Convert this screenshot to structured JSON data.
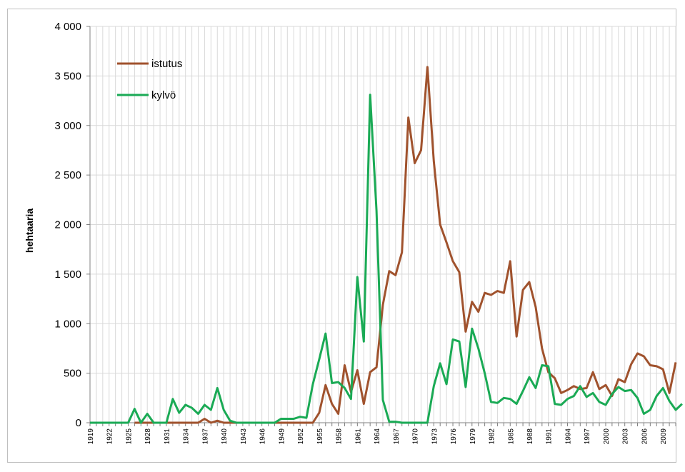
{
  "chart_data": {
    "type": "line",
    "title": "",
    "xlabel": "",
    "ylabel": "hehtaaria",
    "ylim": [
      0,
      4000
    ],
    "yticks": [
      0,
      500,
      1000,
      1500,
      2000,
      2500,
      3000,
      3500,
      4000
    ],
    "ytick_labels": [
      "0",
      "500",
      "1 000",
      "1 500",
      "2 000",
      "2 500",
      "3 000",
      "3 500",
      "4 000"
    ],
    "xlim": [
      1919,
      2011
    ],
    "xtick_labels": [
      "1919",
      "1922",
      "1925",
      "1928",
      "1931",
      "1934",
      "1937",
      "1940",
      "1943",
      "1946",
      "1949",
      "1952",
      "1955",
      "1958",
      "1961",
      "1964",
      "1967",
      "1970",
      "1973",
      "1976",
      "1979",
      "1982",
      "1985",
      "1988",
      "1991",
      "1994",
      "1997",
      "2000",
      "2003",
      "2006",
      "2009"
    ],
    "grid": "vertical",
    "legend": "top-left",
    "series": [
      {
        "name": "istutus",
        "color": "#a0522d",
        "start": 1926,
        "values": [
          0,
          0,
          0,
          0,
          0,
          0,
          0,
          0,
          0,
          0,
          0,
          40,
          0,
          20,
          0,
          0,
          0,
          0,
          0,
          0,
          0,
          0,
          0,
          0,
          0,
          0,
          0,
          0,
          0,
          100,
          380,
          190,
          90,
          580,
          310,
          530,
          190,
          510,
          560,
          1190,
          1530,
          1490,
          1720,
          3080,
          2620,
          2750,
          3590,
          2640,
          2000,
          1820,
          1630,
          1520,
          920,
          1220,
          1120,
          1310,
          1290,
          1330,
          1310,
          1630,
          870,
          1340,
          1420,
          1170,
          750,
          510,
          450,
          300,
          330,
          370,
          340,
          350,
          510,
          340,
          380,
          270,
          440,
          410,
          590,
          700,
          670,
          580,
          570,
          540,
          300,
          610
        ]
      },
      {
        "name": "kylvö",
        "color": "#1aaa55",
        "start": 1919,
        "values": [
          0,
          0,
          0,
          0,
          0,
          0,
          0,
          140,
          0,
          90,
          0,
          0,
          0,
          240,
          100,
          180,
          150,
          90,
          180,
          130,
          350,
          130,
          20,
          0,
          0,
          0,
          0,
          0,
          0,
          0,
          40,
          40,
          40,
          60,
          50,
          390,
          640,
          900,
          400,
          410,
          350,
          240,
          1470,
          820,
          3310,
          2140,
          230,
          10,
          10,
          0,
          0,
          0,
          0,
          0,
          370,
          600,
          390,
          840,
          820,
          360,
          950,
          750,
          500,
          210,
          200,
          250,
          240,
          190,
          320,
          460,
          350,
          580,
          570,
          190,
          180,
          240,
          270,
          370,
          260,
          300,
          210,
          180,
          290,
          360,
          320,
          330,
          250,
          90,
          130,
          270,
          350,
          220,
          130,
          190
        ]
      }
    ]
  }
}
